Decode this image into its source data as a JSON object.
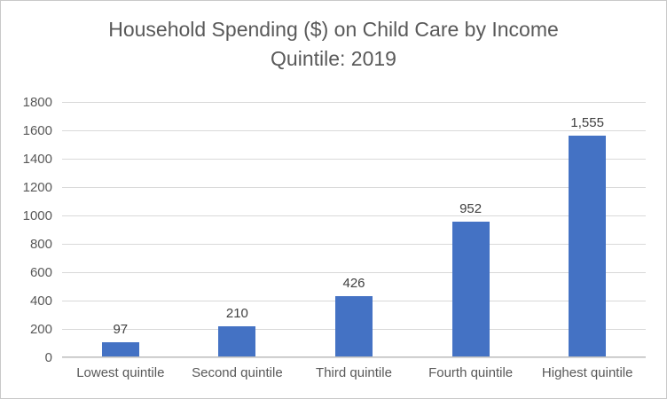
{
  "chart_data": {
    "type": "bar",
    "title": "Household Spending ($) on Child Care by Income Quintile: 2019",
    "categories": [
      "Lowest quintile",
      "Second quintile",
      "Third quintile",
      "Fourth quintile",
      "Highest quintile"
    ],
    "values": [
      97,
      210,
      426,
      952,
      1555
    ],
    "data_labels": [
      "97",
      "210",
      "426",
      "952",
      "1,555"
    ],
    "xlabel": "",
    "ylabel": "",
    "ylim": [
      0,
      1800
    ],
    "y_ticks": [
      0,
      200,
      400,
      600,
      800,
      1000,
      1200,
      1400,
      1600,
      1800
    ],
    "grid": true,
    "legend_position": "none",
    "colors": {
      "bar": "#4472c4",
      "gridline": "#d9d9d9",
      "axis_line": "#bfbfbf",
      "title_text": "#595959",
      "tick_label_text": "#595959",
      "data_label_text": "#404040",
      "background": "#ffffff",
      "border": "#c9c9c9"
    }
  }
}
